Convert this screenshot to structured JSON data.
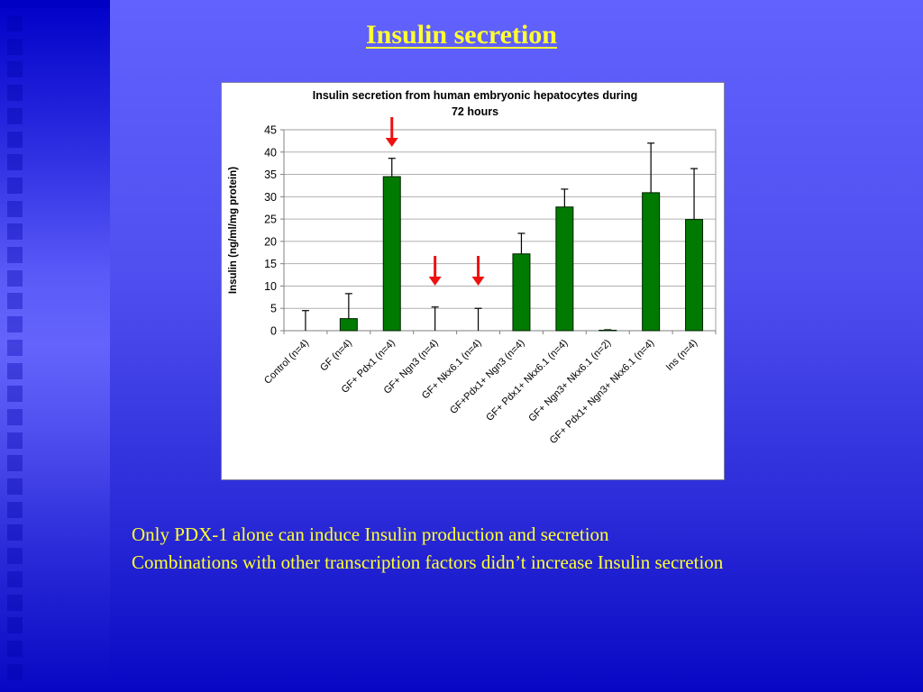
{
  "slide": {
    "title": "Insulin secretion",
    "notes": [
      "Only PDX-1 alone can induce Insulin production and secretion",
      "Combinations with other transcription factors didn’t increase Insulin secretion"
    ]
  },
  "colors": {
    "title_text": "#ffff33",
    "bar_fill": "#007a00",
    "bar_stroke": "#002000",
    "arrow": "#ee1111",
    "gridline": "#b0b0b0",
    "background_top": "#6262fe",
    "background_bottom": "#0808c4"
  },
  "icons": {
    "arrow": "red-down-arrow-icon"
  },
  "chart_data": {
    "type": "bar",
    "title": "Insulin secretion from human embryonic hepatocytes during 72 hours",
    "title_lines": [
      "Insulin secretion from human embryonic hepatocytes during",
      "72 hours"
    ],
    "xlabel": "",
    "ylabel": "Insulin (ng/ml/mg protein)",
    "ylim": [
      0,
      45
    ],
    "yticks": [
      0,
      5,
      10,
      15,
      20,
      25,
      30,
      35,
      40,
      45
    ],
    "grid": true,
    "legend": "none",
    "categories": [
      "Control (n=4)",
      "GF (n=4)",
      "GF+ Pdx1 (n=4)",
      "GF+ Ngn3 (n=4)",
      "GF+ Nkx6.1 (n=4)",
      "GF+Pdx1+ Ngn3 (n=4)",
      "GF+ Pdx1+ Nkx6.1 (n=4)",
      "GF+ Ngn3+ Nkx6.1 (n=2)",
      "GF+ Pdx1+ Ngn3+ Nkx6.1 (n=4)",
      "Ins (n=4)"
    ],
    "values": [
      0,
      2.7,
      34.5,
      0,
      0,
      17.2,
      27.7,
      0.1,
      30.9,
      24.9
    ],
    "error_upper": [
      4.5,
      8.3,
      38.6,
      5.3,
      5.0,
      21.8,
      31.7,
      0.2,
      42.0,
      36.3
    ],
    "annotations": [
      {
        "type": "red-down-arrow",
        "category": "GF+ Pdx1 (n=4)"
      },
      {
        "type": "red-down-arrow",
        "category": "GF+ Ngn3 (n=4)"
      },
      {
        "type": "red-down-arrow",
        "category": "GF+ Nkx6.1 (n=4)"
      }
    ]
  }
}
